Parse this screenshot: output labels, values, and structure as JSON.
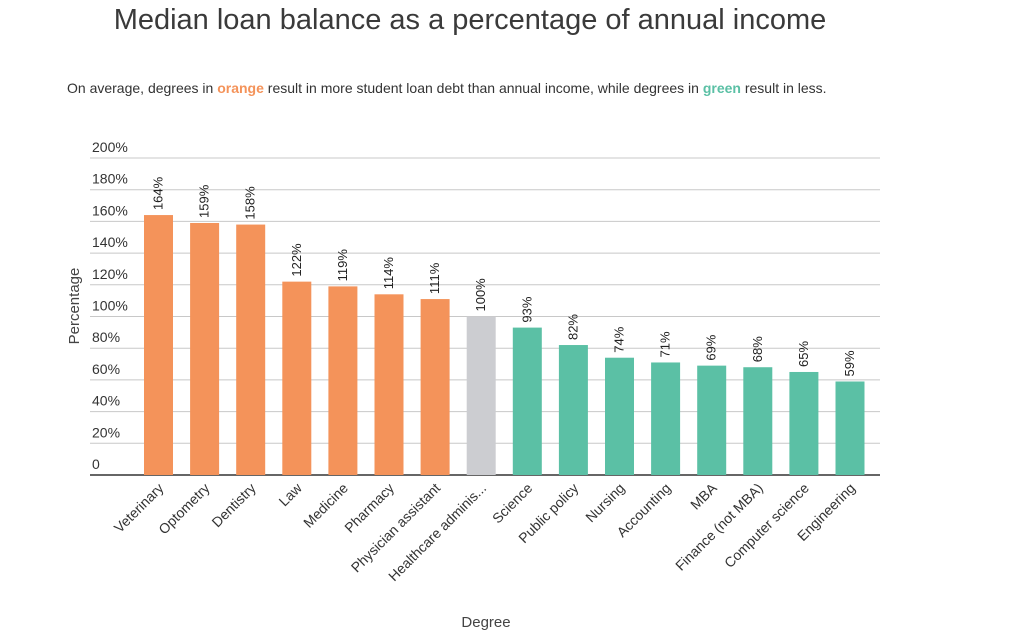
{
  "chart_data": {
    "type": "bar",
    "title": "Median loan balance as a percentage of annual income",
    "subtitle": {
      "before": "On average, degrees in ",
      "orange_word": "orange",
      "middle": " result in more student loan debt than annual income, while degrees in ",
      "green_word": "green",
      "after": " result in less."
    },
    "xlabel": "Degree",
    "ylabel": "Percentage",
    "ylim": [
      0,
      200
    ],
    "y_ticks": [
      {
        "value": 0,
        "label": "0"
      },
      {
        "value": 20,
        "label": "20%"
      },
      {
        "value": 40,
        "label": "40%"
      },
      {
        "value": 60,
        "label": "60%"
      },
      {
        "value": 80,
        "label": "80%"
      },
      {
        "value": 100,
        "label": "100%"
      },
      {
        "value": 120,
        "label": "120%"
      },
      {
        "value": 140,
        "label": "140%"
      },
      {
        "value": 160,
        "label": "160%"
      },
      {
        "value": 180,
        "label": "180%"
      },
      {
        "value": 200,
        "label": "200%"
      }
    ],
    "grid": true,
    "categories": [
      "Veterinary",
      "Optometry",
      "Dentistry",
      "Law",
      "Medicine",
      "Pharmacy",
      "Physician assistant",
      "Healthcare adminis...",
      "Science",
      "Public policy",
      "Nursing",
      "Accounting",
      "MBA",
      "Finance (not MBA)",
      "Computer science",
      "Engineering"
    ],
    "values": [
      164,
      159,
      158,
      122,
      119,
      114,
      111,
      100,
      93,
      82,
      74,
      71,
      69,
      68,
      65,
      59
    ],
    "value_labels": [
      "164%",
      "159%",
      "158%",
      "122%",
      "119%",
      "114%",
      "111%",
      "100%",
      "93%",
      "82%",
      "74%",
      "71%",
      "69%",
      "68%",
      "65%",
      "59%"
    ],
    "bar_groups": [
      "orange",
      "orange",
      "orange",
      "orange",
      "orange",
      "orange",
      "orange",
      "gray",
      "green",
      "green",
      "green",
      "green",
      "green",
      "green",
      "green",
      "green"
    ],
    "colors": {
      "orange": "#f4935a",
      "gray": "#cccdd1",
      "green": "#5bc0a5",
      "grid": "#c8c8c8",
      "axis": "#333333"
    }
  }
}
